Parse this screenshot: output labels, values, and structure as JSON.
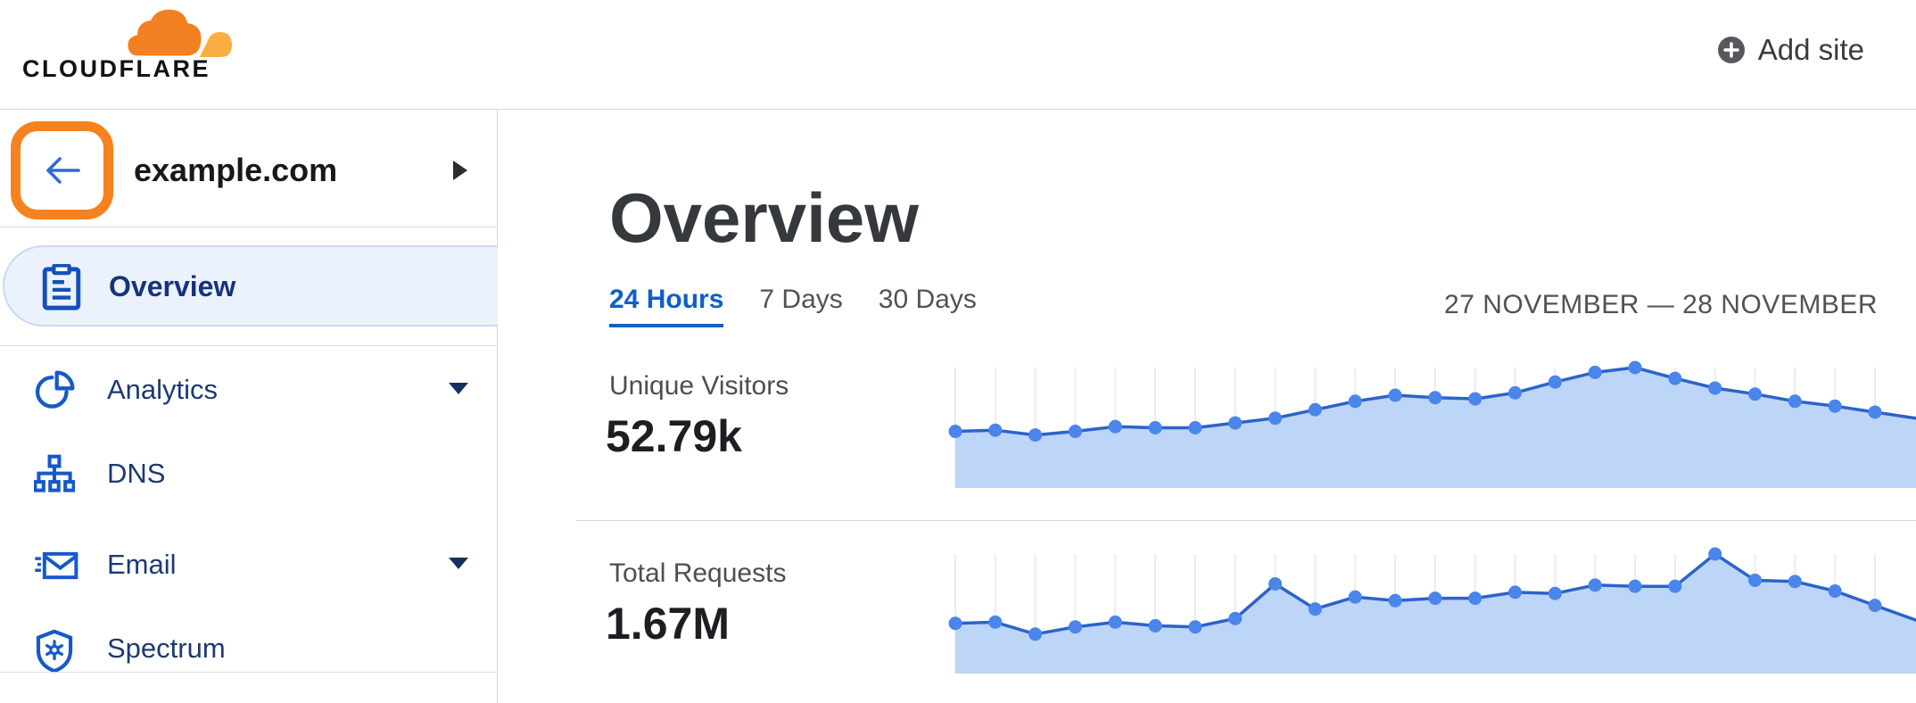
{
  "header": {
    "logo_text": "CLOUDFLARE",
    "add_site_label": "Add site"
  },
  "sidebar": {
    "site": {
      "name": "example.com"
    },
    "items": [
      {
        "label": "Overview",
        "icon": "clipboard-icon",
        "active": true,
        "caret": false
      },
      {
        "label": "Analytics",
        "icon": "pie-chart-icon",
        "active": false,
        "caret": true
      },
      {
        "label": "DNS",
        "icon": "dns-tree-icon",
        "active": false,
        "caret": false
      },
      {
        "label": "Email",
        "icon": "envelope-icon",
        "active": false,
        "caret": true
      },
      {
        "label": "Spectrum",
        "icon": "shield-icon",
        "active": false,
        "caret": false
      }
    ]
  },
  "main": {
    "title": "Overview",
    "tabs": [
      {
        "label": "24 Hours",
        "active": true
      },
      {
        "label": "7 Days",
        "active": false
      },
      {
        "label": "30 Days",
        "active": false
      }
    ],
    "date_range": "27 NOVEMBER — 28 NOVEMBER",
    "metrics": [
      {
        "label": "Unique Visitors",
        "value": "52.79k"
      },
      {
        "label": "Total Requests",
        "value": "1.67M"
      }
    ]
  },
  "chart_data": [
    {
      "type": "area",
      "title": "Unique Visitors (24 Hours)",
      "total_shown": "52.79k",
      "x": [
        0,
        1,
        2,
        3,
        4,
        5,
        6,
        7,
        8,
        9,
        10,
        11,
        12,
        13,
        14,
        15,
        16,
        17,
        18,
        19,
        20,
        21,
        22,
        23
      ],
      "xlabel": "hour of 24-hour window (unlabeled on screen)",
      "values": [
        47,
        48,
        44,
        47,
        51,
        50,
        50,
        54,
        58,
        65,
        72,
        77,
        75,
        74,
        79,
        88,
        96,
        100,
        91,
        83,
        78,
        72,
        68,
        63
      ],
      "y_unit": "percent of peak (no y-axis ticks shown)",
      "ylim": [
        0,
        100
      ],
      "grid": "vertical gridlines at each point",
      "legend": "none",
      "markers": "filled circles at each point"
    },
    {
      "type": "area",
      "title": "Total Requests (24 Hours)",
      "total_shown": "1.67M",
      "x": [
        0,
        1,
        2,
        3,
        4,
        5,
        6,
        7,
        8,
        9,
        10,
        11,
        12,
        13,
        14,
        15,
        16,
        17,
        18,
        19,
        20,
        21,
        22,
        23
      ],
      "xlabel": "hour of 24-hour window (unlabeled on screen)",
      "values": [
        42,
        43,
        33,
        39,
        43,
        40,
        39,
        46,
        75,
        54,
        64,
        61,
        63,
        63,
        68,
        67,
        74,
        73,
        73,
        100,
        78,
        77,
        69,
        57
      ],
      "y_unit": "percent of peak (no y-axis ticks shown)",
      "ylim": [
        0,
        100
      ],
      "grid": "vertical gridlines at each point",
      "legend": "none",
      "markers": "filled circles at each point"
    }
  ],
  "colors": {
    "brand_orange": "#f6821f",
    "logo_cloud_main": "#f38020",
    "logo_cloud_light": "#fbad41",
    "active_tab_blue": "#0f5fc9",
    "sidebar_text_navy": "#1d3971",
    "icon_blue": "#1659c8",
    "active_item_bg": "#ecf2fb",
    "active_item_border": "#c8d9f4",
    "chart_line": "#2b63c9",
    "chart_dot": "#4a85ec",
    "chart_fill": "#bdd5f7",
    "chart_grid": "#e9ecf3"
  }
}
